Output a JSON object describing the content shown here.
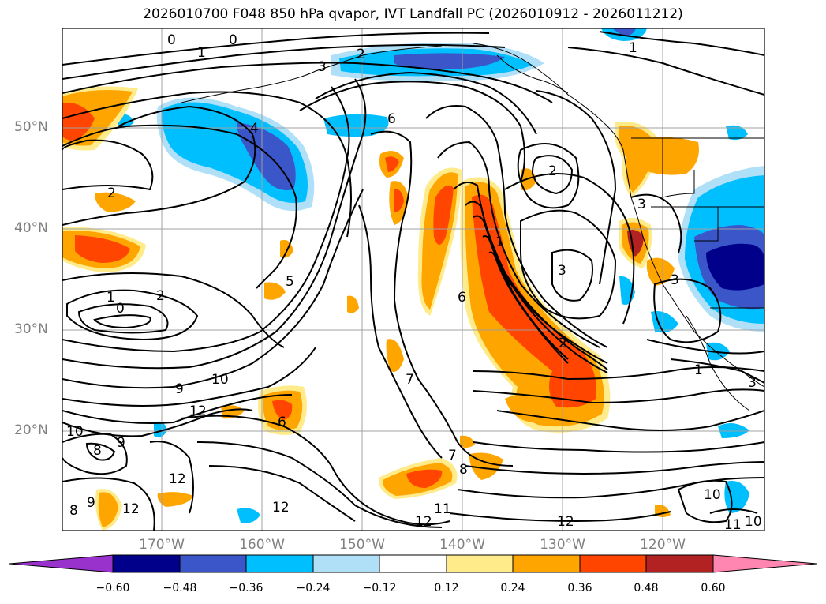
{
  "title": "2026010700 F048 850 hPa qvapor, IVT Landfall PC (2026010912 - 2026011212)",
  "lat_labels": [
    "50°N",
    "40°N",
    "30°N",
    "20°N"
  ],
  "lon_labels": [
    "170°W",
    "160°W",
    "150°W",
    "140°W",
    "130°W",
    "120°W"
  ],
  "colorbar": {
    "colors": [
      "#9932cc",
      "#00008b",
      "#3a56c8",
      "#00bfff",
      "#b0e0f8",
      "#ffffff",
      "#ffeb8a",
      "#ffa500",
      "#ff4500",
      "#b22222",
      "#ff86b0"
    ],
    "tick_labels": [
      "−0.60",
      "−0.48",
      "−0.36",
      "−0.24",
      "−0.12",
      "0.12",
      "0.24",
      "0.36",
      "0.48",
      "0.60"
    ]
  },
  "contour_labels": [
    "0",
    "0",
    "1",
    "3",
    "2",
    "1",
    "4",
    "6",
    "2",
    "2",
    "3",
    "1",
    "3",
    "2",
    "1",
    "0",
    "5",
    "3",
    "6",
    "10",
    "9",
    "12",
    "2",
    "7",
    "6",
    "10",
    "8",
    "9",
    "12",
    "7",
    "8",
    "12",
    "11",
    "12",
    "12",
    "12",
    "1",
    "10",
    "11",
    "10",
    "3",
    "9",
    "8"
  ]
}
